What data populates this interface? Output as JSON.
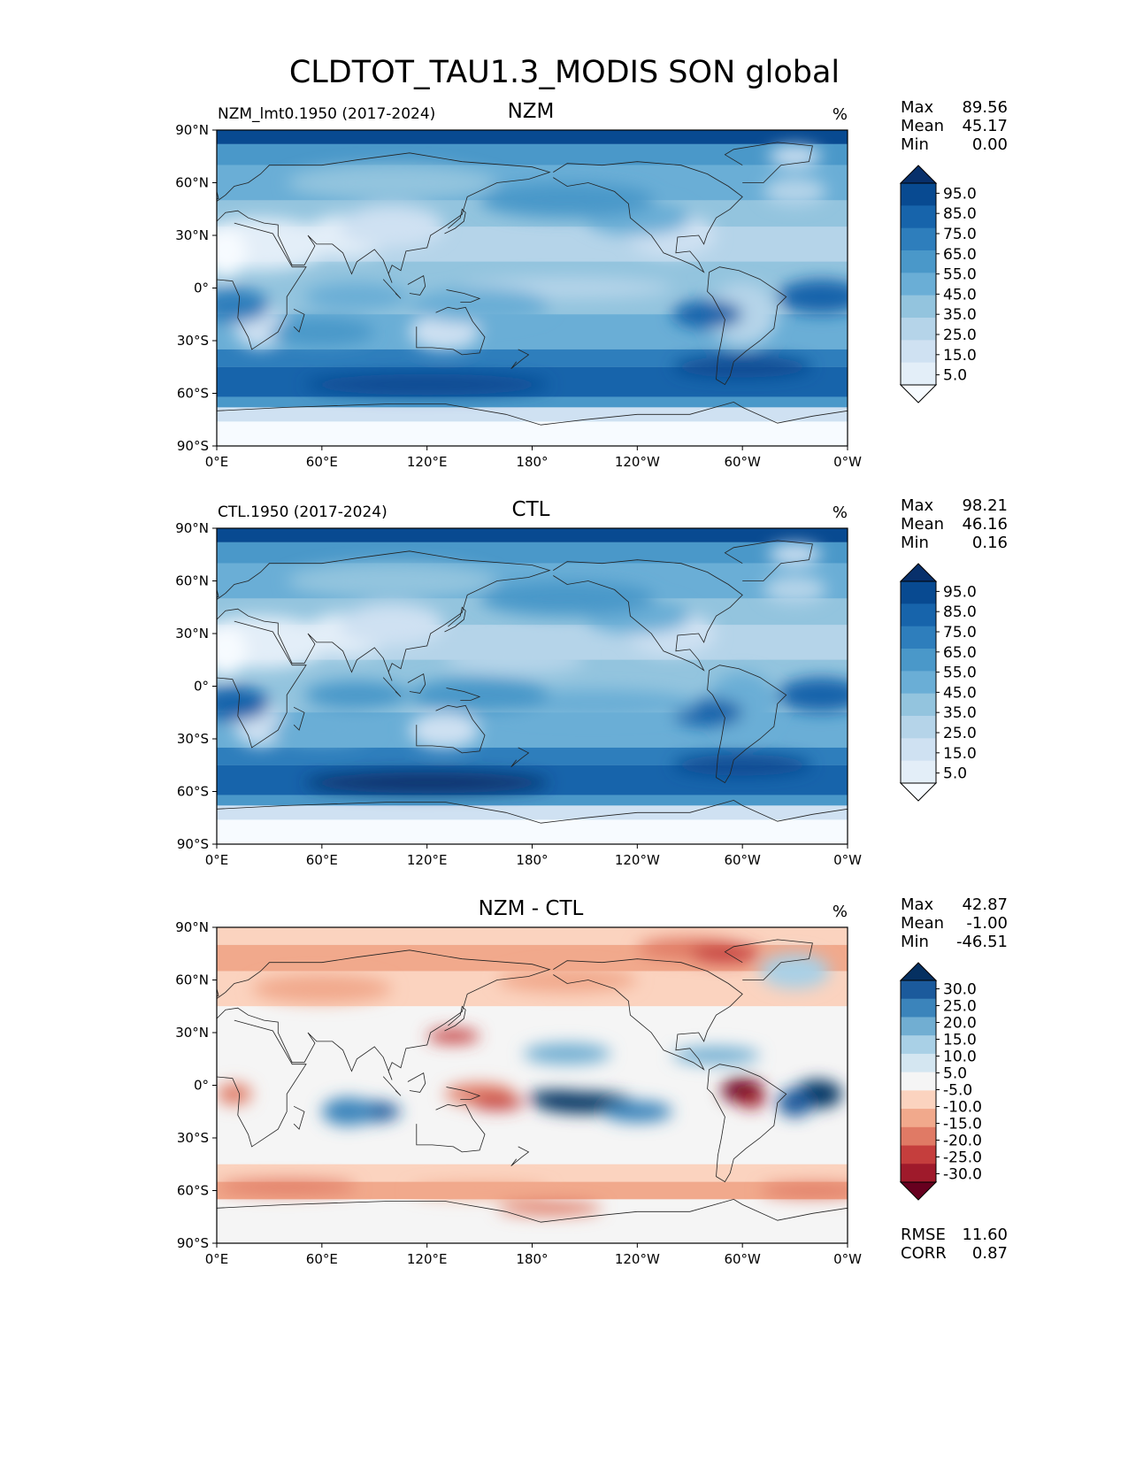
{
  "title": "CLDTOT_TAU1.3_MODIS SON global",
  "lat_ticks": [
    "90°N",
    "60°N",
    "30°N",
    "0°",
    "30°S",
    "60°S",
    "90°S"
  ],
  "lon_ticks": [
    "0°E",
    "60°E",
    "120°E",
    "180°",
    "120°W",
    "60°W",
    "0°W"
  ],
  "panels": [
    {
      "left_label": "NZM_lmt0.1950 (2017-2024)",
      "center_title": "NZM",
      "units": "%",
      "stats": [
        {
          "label": "Max",
          "value": "89.56"
        },
        {
          "label": "Mean",
          "value": "45.17"
        },
        {
          "label": "Min",
          "value": "0.00"
        }
      ],
      "colorbar_labels": [
        "95.0",
        "85.0",
        "75.0",
        "65.0",
        "55.0",
        "45.0",
        "35.0",
        "25.0",
        "15.0",
        "5.0"
      ]
    },
    {
      "left_label": "CTL.1950 (2017-2024)",
      "center_title": "CTL",
      "units": "%",
      "stats": [
        {
          "label": "Max",
          "value": "98.21"
        },
        {
          "label": "Mean",
          "value": "46.16"
        },
        {
          "label": "Min",
          "value": "0.16"
        }
      ],
      "colorbar_labels": [
        "95.0",
        "85.0",
        "75.0",
        "65.0",
        "55.0",
        "45.0",
        "35.0",
        "25.0",
        "15.0",
        "5.0"
      ]
    },
    {
      "left_label": "",
      "center_title": "NZM - CTL",
      "units": "%",
      "stats": [
        {
          "label": "Max",
          "value": "42.87"
        },
        {
          "label": "Mean",
          "value": "-1.00"
        },
        {
          "label": "Min",
          "value": "-46.51"
        }
      ],
      "colorbar_labels": [
        "30.0",
        "25.0",
        "20.0",
        "15.0",
        "10.0",
        "5.0",
        "-5.0",
        "-10.0",
        "-15.0",
        "-20.0",
        "-25.0",
        "-30.0"
      ],
      "extra_stats": [
        {
          "label": "RMSE",
          "value": "11.60"
        },
        {
          "label": "CORR",
          "value": "0.87"
        }
      ]
    }
  ],
  "colors": {
    "blues": [
      "#f7fbff",
      "#e3eef8",
      "#cfe1f2",
      "#b5d4e9",
      "#93c4de",
      "#6aaed6",
      "#4a98c9",
      "#2e7ebc",
      "#1764ab",
      "#084a91",
      "#08306b"
    ],
    "diverging": [
      "#67001f",
      "#9f1a2b",
      "#c53e3d",
      "#e07a65",
      "#f1a98c",
      "#fbd3bf",
      "#f5f5f5",
      "#d4e6f1",
      "#a9d0e6",
      "#71aed2",
      "#3b84bb",
      "#1b5a9c",
      "#053061"
    ]
  }
}
